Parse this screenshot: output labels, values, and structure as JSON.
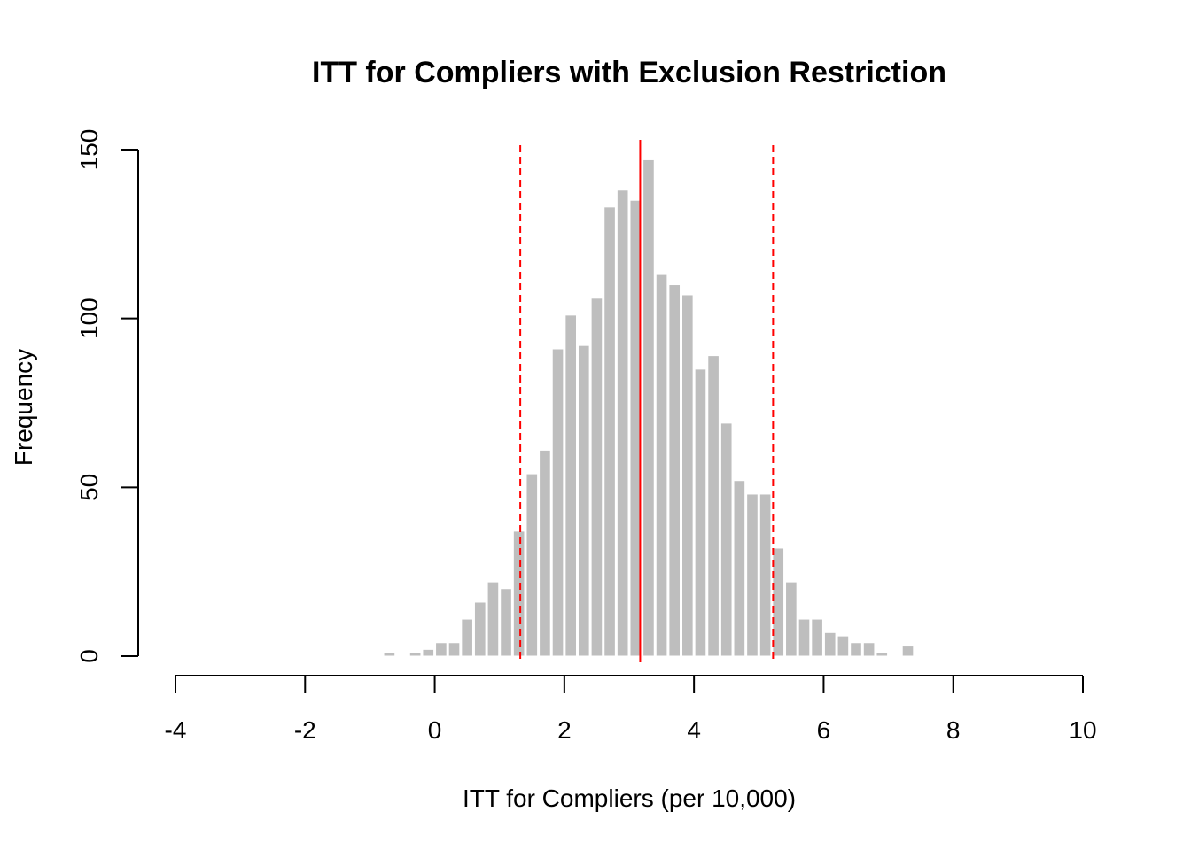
{
  "chart_data": {
    "type": "bar",
    "title": "ITT for Compliers with Exclusion Restriction",
    "xlabel": "ITT for Compliers (per 10,000)",
    "ylabel": "Frequency",
    "xlim": [
      -4,
      10
    ],
    "ylim": [
      0,
      150
    ],
    "x_ticks": [
      "-4",
      "-2",
      "0",
      "2",
      "4",
      "6",
      "8",
      "10"
    ],
    "x_tick_values": [
      -4,
      -2,
      0,
      2,
      4,
      6,
      8,
      10
    ],
    "y_ticks": [
      "0",
      "50",
      "100",
      "150"
    ],
    "y_tick_values": [
      0,
      50,
      100,
      150
    ],
    "bin_width": 0.2,
    "bins": [
      {
        "x0": -0.8,
        "count": 1
      },
      {
        "x0": -0.6,
        "count": 0
      },
      {
        "x0": -0.4,
        "count": 1
      },
      {
        "x0": -0.2,
        "count": 2
      },
      {
        "x0": 0.0,
        "count": 4
      },
      {
        "x0": 0.2,
        "count": 4
      },
      {
        "x0": 0.4,
        "count": 11
      },
      {
        "x0": 0.6,
        "count": 16
      },
      {
        "x0": 0.8,
        "count": 22
      },
      {
        "x0": 1.0,
        "count": 20
      },
      {
        "x0": 1.2,
        "count": 37
      },
      {
        "x0": 1.4,
        "count": 54
      },
      {
        "x0": 1.6,
        "count": 61
      },
      {
        "x0": 1.8,
        "count": 91
      },
      {
        "x0": 2.0,
        "count": 101
      },
      {
        "x0": 2.2,
        "count": 92
      },
      {
        "x0": 2.4,
        "count": 106
      },
      {
        "x0": 2.6,
        "count": 133
      },
      {
        "x0": 2.8,
        "count": 138
      },
      {
        "x0": 3.0,
        "count": 135
      },
      {
        "x0": 3.2,
        "count": 147
      },
      {
        "x0": 3.4,
        "count": 113
      },
      {
        "x0": 3.6,
        "count": 110
      },
      {
        "x0": 3.8,
        "count": 107
      },
      {
        "x0": 4.0,
        "count": 85
      },
      {
        "x0": 4.2,
        "count": 89
      },
      {
        "x0": 4.4,
        "count": 69
      },
      {
        "x0": 4.6,
        "count": 52
      },
      {
        "x0": 4.8,
        "count": 48
      },
      {
        "x0": 5.0,
        "count": 48
      },
      {
        "x0": 5.2,
        "count": 32
      },
      {
        "x0": 5.4,
        "count": 22
      },
      {
        "x0": 5.6,
        "count": 11
      },
      {
        "x0": 5.8,
        "count": 11
      },
      {
        "x0": 6.0,
        "count": 7
      },
      {
        "x0": 6.2,
        "count": 6
      },
      {
        "x0": 6.4,
        "count": 4
      },
      {
        "x0": 6.6,
        "count": 4
      },
      {
        "x0": 6.8,
        "count": 1
      },
      {
        "x0": 7.0,
        "count": 0
      },
      {
        "x0": 7.2,
        "count": 3
      }
    ],
    "bar_color": "#bebebe",
    "reference_lines": [
      {
        "kind": "solid",
        "x": 3.17,
        "color": "#ff0000"
      },
      {
        "kind": "dashed",
        "x": 1.32,
        "color": "#ff0000"
      },
      {
        "kind": "dashed",
        "x": 5.22,
        "color": "#ff0000"
      }
    ],
    "grid": false,
    "legend": "none"
  }
}
